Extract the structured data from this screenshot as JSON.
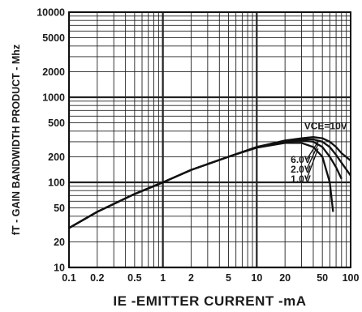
{
  "chart_data": {
    "type": "line",
    "xlabel": "IE -EMITTER CURRENT -mA",
    "ylabel": "fT - GAIN BANDWIDTH PRODUCT - Mhz",
    "x_scale": "log",
    "y_scale": "log",
    "xlim": [
      0.1,
      100
    ],
    "ylim": [
      10,
      10000
    ],
    "grid": true,
    "x_ticks": [
      0.1,
      0.2,
      0.5,
      1,
      2,
      5,
      10,
      20,
      50,
      100
    ],
    "x_tick_labels": [
      "0.1",
      "0.2",
      "0.5",
      "1",
      "2",
      "5",
      "10",
      "20",
      "50",
      "100"
    ],
    "y_ticks": [
      10,
      20,
      50,
      100,
      200,
      500,
      1000,
      2000,
      5000,
      10000
    ],
    "y_tick_labels": [
      "10",
      "20",
      "50",
      "100",
      "200",
      "500",
      "1000",
      "2000",
      "5000",
      "10000"
    ],
    "series": [
      {
        "name": "VCE=10V",
        "x": [
          0.1,
          0.2,
          0.5,
          1,
          2,
          5,
          10,
          20,
          30,
          40,
          50,
          60,
          70,
          80,
          100
        ],
        "y": [
          29,
          45,
          73,
          100,
          140,
          200,
          260,
          310,
          330,
          340,
          330,
          300,
          260,
          220,
          180
        ]
      },
      {
        "name": "6.0V",
        "x": [
          0.1,
          0.2,
          0.5,
          1,
          2,
          5,
          10,
          20,
          30,
          40,
          50,
          60,
          70,
          80,
          100
        ],
        "y": [
          29,
          45,
          73,
          100,
          140,
          200,
          260,
          305,
          320,
          320,
          300,
          260,
          210,
          170,
          120
        ]
      },
      {
        "name": "2.0V",
        "x": [
          0.1,
          0.2,
          0.5,
          1,
          2,
          5,
          10,
          20,
          30,
          40,
          50,
          60,
          70,
          80
        ],
        "y": [
          29,
          45,
          73,
          100,
          140,
          200,
          260,
          300,
          310,
          300,
          260,
          200,
          150,
          110
        ]
      },
      {
        "name": "1.0V",
        "x": [
          0.1,
          0.2,
          0.5,
          1,
          2,
          5,
          10,
          20,
          30,
          40,
          50,
          60,
          65
        ],
        "y": [
          29,
          45,
          73,
          100,
          140,
          200,
          255,
          290,
          290,
          260,
          200,
          100,
          45
        ]
      }
    ],
    "curve_labels": [
      {
        "text": "VCE=10V",
        "x": 32,
        "y": 420
      },
      {
        "text": "6.0V",
        "x": 23,
        "y": 170
      },
      {
        "text": "2.0V",
        "x": 23,
        "y": 130
      },
      {
        "text": "1.0V",
        "x": 23,
        "y": 100
      }
    ]
  }
}
